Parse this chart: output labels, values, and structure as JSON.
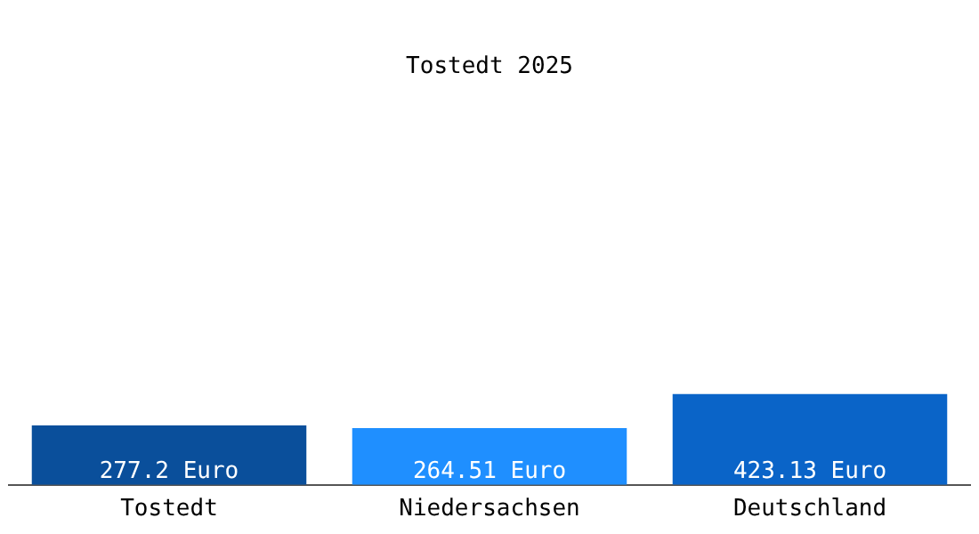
{
  "chart_data": {
    "type": "bar",
    "title": "Tostedt 2025",
    "categories": [
      "Tostedt",
      "Niedersachsen",
      "Deutschland"
    ],
    "values": [
      277.2,
      264.51,
      423.13
    ],
    "colors": [
      "#0a4f9b",
      "#1f8fff",
      "#0a64c8"
    ],
    "value_labels": [
      "277.2 Euro",
      "264.51 Euro",
      "423.13 Euro"
    ],
    "tick_labels": "x",
    "grid": false,
    "legend": false
  }
}
